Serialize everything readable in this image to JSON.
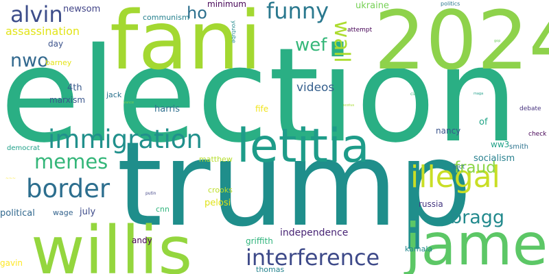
{
  "words": [
    {
      "text": "election",
      "color": "#2aaf84"
    },
    {
      "text": "trump",
      "color": "#1f8e8b"
    },
    {
      "text": "2024",
      "color": "#8ed24b"
    },
    {
      "text": "fani",
      "color": "#a3d831"
    },
    {
      "text": "willis",
      "color": "#94d63e"
    },
    {
      "text": "james",
      "color": "#5cc766"
    },
    {
      "text": "letitia",
      "color": "#1e9c89"
    },
    {
      "text": "illegal",
      "color": "#c9de25"
    },
    {
      "text": "immigration",
      "color": "#21908c"
    },
    {
      "text": "border",
      "color": "#2c6e8e"
    },
    {
      "text": "interference",
      "color": "#3e4a89"
    },
    {
      "text": "funny",
      "color": "#2a788e"
    },
    {
      "text": "memes",
      "color": "#34b679"
    },
    {
      "text": "alvin",
      "color": "#3d4d8a"
    },
    {
      "text": "wall",
      "color": "#addc30"
    },
    {
      "text": "bragg",
      "color": "#238a8d"
    },
    {
      "text": "fraud",
      "color": "#8bd646"
    },
    {
      "text": "wef",
      "color": "#35b779"
    },
    {
      "text": "nwo",
      "color": "#31688e"
    },
    {
      "text": "ho",
      "color": "#2d708e"
    },
    {
      "text": "assassination",
      "color": "#e2e418"
    },
    {
      "text": "videos",
      "color": "#355f8d"
    },
    {
      "text": "independence",
      "color": "#482475"
    },
    {
      "text": "newsom",
      "color": "#414487"
    },
    {
      "text": "communism",
      "color": "#26818e"
    },
    {
      "text": "minimum",
      "color": "#440154"
    },
    {
      "text": "ukraine",
      "color": "#75d054"
    },
    {
      "text": "day",
      "color": "#3b528b"
    },
    {
      "text": "barney",
      "color": "#e5e419"
    },
    {
      "text": "4th",
      "color": "#38598c"
    },
    {
      "text": "marxism",
      "color": "#39568c"
    },
    {
      "text": "harris",
      "color": "#2e6f8e"
    },
    {
      "text": "jack",
      "color": "#2c728e"
    },
    {
      "text": "fife",
      "color": "#f1e51d"
    },
    {
      "text": "nancy",
      "color": "#3a548c"
    },
    {
      "text": "of",
      "color": "#20a486"
    },
    {
      "text": "socialism",
      "color": "#27808e"
    },
    {
      "text": "ww3",
      "color": "#1fa187"
    },
    {
      "text": "smith",
      "color": "#2c738e"
    },
    {
      "text": "debate",
      "color": "#46327e"
    },
    {
      "text": "check",
      "color": "#440154"
    },
    {
      "text": "fact",
      "color": "#2d708e"
    },
    {
      "text": "russia",
      "color": "#453781"
    },
    {
      "text": "matthew",
      "color": "#b5de2b"
    },
    {
      "text": "crooks",
      "color": "#bddf26"
    },
    {
      "text": "pelosi",
      "color": "#dfe318"
    },
    {
      "text": "cnn",
      "color": "#2fb47c"
    },
    {
      "text": "july",
      "color": "#3e4c8a"
    },
    {
      "text": "wage",
      "color": "#33638d"
    },
    {
      "text": "political",
      "color": "#31688e"
    },
    {
      "text": "andy",
      "color": "#440154"
    },
    {
      "text": "griffith",
      "color": "#2fb47c"
    },
    {
      "text": "kamala",
      "color": "#23888e"
    },
    {
      "text": "gavin",
      "color": "#fde725"
    },
    {
      "text": "thomas",
      "color": "#25848e"
    },
    {
      "text": "democrat",
      "color": "#1fa088"
    },
    {
      "text": "youtube",
      "color": "#238a8d"
    },
    {
      "text": "attempt",
      "color": "#440154"
    },
    {
      "text": "politics",
      "color": "#2a788e"
    },
    {
      "text": "putin",
      "color": "#414487"
    },
    {
      "text": "~~~",
      "color": "#fde725"
    },
    {
      "text": "scotus",
      "color": "#a8db34"
    },
    {
      "text": "cia",
      "color": "#35b779"
    },
    {
      "text": "gop",
      "color": "#6ccd5a"
    },
    {
      "text": "maga",
      "color": "#1f9e89"
    },
    {
      "text": "vance",
      "color": "#7ad151"
    }
  ]
}
